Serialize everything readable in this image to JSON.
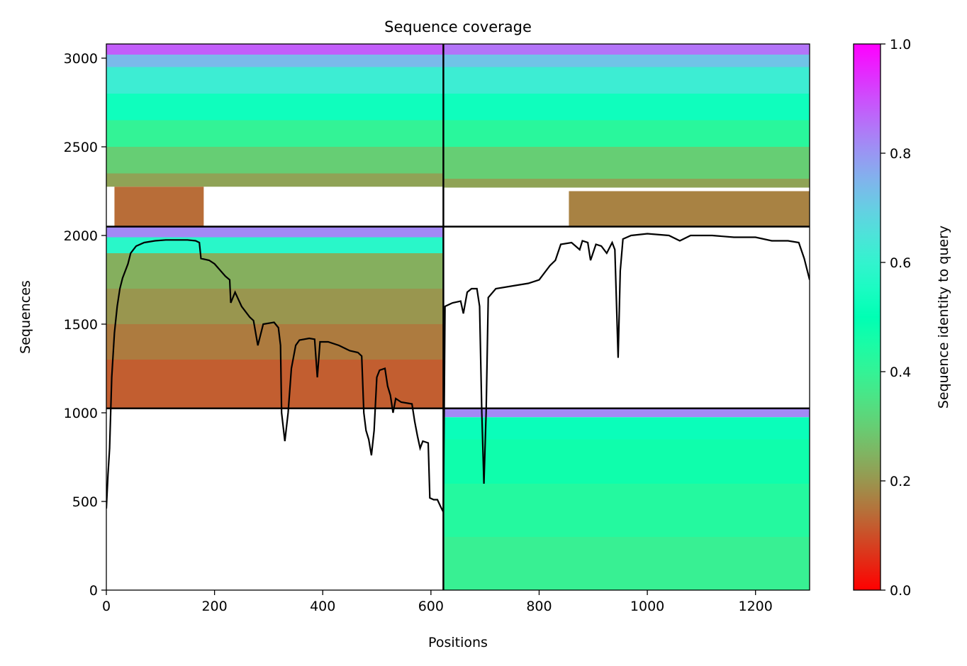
{
  "chart_data": {
    "type": "heatmap",
    "title": "Sequence coverage",
    "xlabel": "Positions",
    "ylabel": "Sequences",
    "xlim": [
      0,
      1300
    ],
    "ylim": [
      0,
      3080
    ],
    "xticks": [
      0,
      200,
      400,
      600,
      800,
      1000,
      1200
    ],
    "xtick_labels": [
      "0",
      "200",
      "400",
      "600",
      "800",
      "1000",
      "1200"
    ],
    "yticks": [
      0,
      500,
      1000,
      1500,
      2000,
      2500,
      3000
    ],
    "ytick_labels": [
      "0",
      "500",
      "1000",
      "1500",
      "2000",
      "2500",
      "3000"
    ],
    "colorbar": {
      "label": "Sequence identity to query",
      "range": [
        0.0,
        1.0
      ],
      "ticks": [
        0.0,
        0.2,
        0.4,
        0.6,
        0.8,
        1.0
      ],
      "tick_labels": [
        "0.0",
        "0.2",
        "0.4",
        "0.6",
        "0.8",
        "1.0"
      ],
      "colormap": "rainbow_r"
    },
    "partition": {
      "x_boundaries": [
        623
      ],
      "y_boundaries": [
        1025,
        2050
      ]
    },
    "blocks": [
      {
        "name": "block-chain1-pair1",
        "x": [
          0,
          623
        ],
        "y": [
          2050,
          3080
        ],
        "identity_bands": [
          {
            "y": [
              3020,
              3080
            ],
            "identity": 0.88
          },
          {
            "y": [
              2950,
              3020
            ],
            "identity": 0.74
          },
          {
            "y": [
              2800,
              2950
            ],
            "identity": 0.62
          },
          {
            "y": [
              2650,
              2800
            ],
            "identity": 0.53
          },
          {
            "y": [
              2500,
              2650
            ],
            "identity": 0.4
          },
          {
            "y": [
              2350,
              2500
            ],
            "identity": 0.3
          },
          {
            "y": [
              2275,
              2350
            ],
            "identity": 0.22
          }
        ],
        "lower_region": {
          "y": [
            2050,
            2275
          ],
          "x": [
            15,
            180
          ],
          "identity": 0.14
        }
      },
      {
        "name": "block-chain2-pair1",
        "x": [
          623,
          1300
        ],
        "y": [
          2050,
          3080
        ],
        "identity_bands": [
          {
            "y": [
              3020,
              3080
            ],
            "identity": 0.85
          },
          {
            "y": [
              2950,
              3020
            ],
            "identity": 0.72
          },
          {
            "y": [
              2800,
              2950
            ],
            "identity": 0.62
          },
          {
            "y": [
              2650,
              2800
            ],
            "identity": 0.53
          },
          {
            "y": [
              2500,
              2650
            ],
            "identity": 0.42
          },
          {
            "y": [
              2320,
              2500
            ],
            "identity": 0.3
          },
          {
            "y": [
              2270,
              2320
            ],
            "identity": 0.22
          }
        ],
        "lower_region": {
          "y": [
            2050,
            2250
          ],
          "x": [
            855,
            1300
          ],
          "identity": 0.17
        }
      },
      {
        "name": "block-chain1-pair2",
        "x": [
          0,
          623
        ],
        "y": [
          1025,
          2050
        ],
        "identity_bands": [
          {
            "y": [
              1990,
              2050
            ],
            "identity": 0.82
          },
          {
            "y": [
              1900,
              1990
            ],
            "identity": 0.58
          },
          {
            "y": [
              1700,
              1900
            ],
            "identity": 0.24
          },
          {
            "y": [
              1500,
              1700
            ],
            "identity": 0.2
          },
          {
            "y": [
              1300,
              1500
            ],
            "identity": 0.16
          },
          {
            "y": [
              1025,
              1300
            ],
            "identity": 0.12
          }
        ]
      },
      {
        "name": "block-chain2-pair3",
        "x": [
          623,
          1300
        ],
        "y": [
          0,
          1025
        ],
        "identity_bands": [
          {
            "y": [
              975,
              1025
            ],
            "identity": 0.82
          },
          {
            "y": [
              850,
              975
            ],
            "identity": 0.52
          },
          {
            "y": [
              600,
              850
            ],
            "identity": 0.47
          },
          {
            "y": [
              300,
              600
            ],
            "identity": 0.43
          },
          {
            "y": [
              0,
              300
            ],
            "identity": 0.39
          }
        ]
      }
    ],
    "coverage_line": {
      "color": "#000000",
      "points": [
        [
          0,
          460
        ],
        [
          3,
          650
        ],
        [
          6,
          800
        ],
        [
          10,
          1200
        ],
        [
          15,
          1450
        ],
        [
          20,
          1600
        ],
        [
          25,
          1700
        ],
        [
          30,
          1760
        ],
        [
          40,
          1840
        ],
        [
          45,
          1900
        ],
        [
          55,
          1940
        ],
        [
          70,
          1960
        ],
        [
          90,
          1970
        ],
        [
          110,
          1975
        ],
        [
          150,
          1975
        ],
        [
          165,
          1970
        ],
        [
          172,
          1960
        ],
        [
          175,
          1870
        ],
        [
          190,
          1860
        ],
        [
          200,
          1840
        ],
        [
          220,
          1770
        ],
        [
          228,
          1750
        ],
        [
          230,
          1620
        ],
        [
          238,
          1680
        ],
        [
          250,
          1600
        ],
        [
          265,
          1540
        ],
        [
          272,
          1520
        ],
        [
          280,
          1380
        ],
        [
          290,
          1500
        ],
        [
          310,
          1510
        ],
        [
          318,
          1480
        ],
        [
          322,
          1380
        ],
        [
          324,
          1000
        ],
        [
          330,
          840
        ],
        [
          336,
          1000
        ],
        [
          342,
          1250
        ],
        [
          350,
          1380
        ],
        [
          357,
          1410
        ],
        [
          375,
          1420
        ],
        [
          385,
          1415
        ],
        [
          390,
          1200
        ],
        [
          395,
          1400
        ],
        [
          410,
          1400
        ],
        [
          430,
          1380
        ],
        [
          450,
          1350
        ],
        [
          465,
          1340
        ],
        [
          472,
          1320
        ],
        [
          476,
          1000
        ],
        [
          480,
          900
        ],
        [
          485,
          850
        ],
        [
          490,
          760
        ],
        [
          495,
          900
        ],
        [
          500,
          1200
        ],
        [
          505,
          1240
        ],
        [
          515,
          1250
        ],
        [
          520,
          1150
        ],
        [
          525,
          1100
        ],
        [
          530,
          1000
        ],
        [
          535,
          1080
        ],
        [
          545,
          1060
        ],
        [
          565,
          1050
        ],
        [
          570,
          950
        ],
        [
          575,
          870
        ],
        [
          580,
          800
        ],
        [
          585,
          840
        ],
        [
          595,
          830
        ],
        [
          598,
          520
        ],
        [
          605,
          510
        ],
        [
          612,
          510
        ],
        [
          618,
          470
        ],
        [
          623,
          440
        ],
        [
          626,
          1600
        ],
        [
          640,
          1620
        ],
        [
          655,
          1630
        ],
        [
          660,
          1560
        ],
        [
          667,
          1680
        ],
        [
          675,
          1700
        ],
        [
          685,
          1700
        ],
        [
          690,
          1600
        ],
        [
          694,
          1000
        ],
        [
          698,
          600
        ],
        [
          702,
          1000
        ],
        [
          706,
          1650
        ],
        [
          720,
          1700
        ],
        [
          760,
          1720
        ],
        [
          780,
          1730
        ],
        [
          800,
          1750
        ],
        [
          820,
          1830
        ],
        [
          830,
          1860
        ],
        [
          840,
          1950
        ],
        [
          860,
          1960
        ],
        [
          875,
          1920
        ],
        [
          880,
          1970
        ],
        [
          890,
          1960
        ],
        [
          895,
          1860
        ],
        [
          905,
          1950
        ],
        [
          915,
          1940
        ],
        [
          925,
          1900
        ],
        [
          935,
          1960
        ],
        [
          940,
          1920
        ],
        [
          946,
          1310
        ],
        [
          950,
          1800
        ],
        [
          955,
          1980
        ],
        [
          970,
          2000
        ],
        [
          1000,
          2010
        ],
        [
          1040,
          2000
        ],
        [
          1060,
          1970
        ],
        [
          1080,
          2000
        ],
        [
          1120,
          2000
        ],
        [
          1160,
          1990
        ],
        [
          1200,
          1990
        ],
        [
          1230,
          1970
        ],
        [
          1260,
          1970
        ],
        [
          1280,
          1960
        ],
        [
          1290,
          1870
        ],
        [
          1300,
          1750
        ]
      ]
    }
  }
}
